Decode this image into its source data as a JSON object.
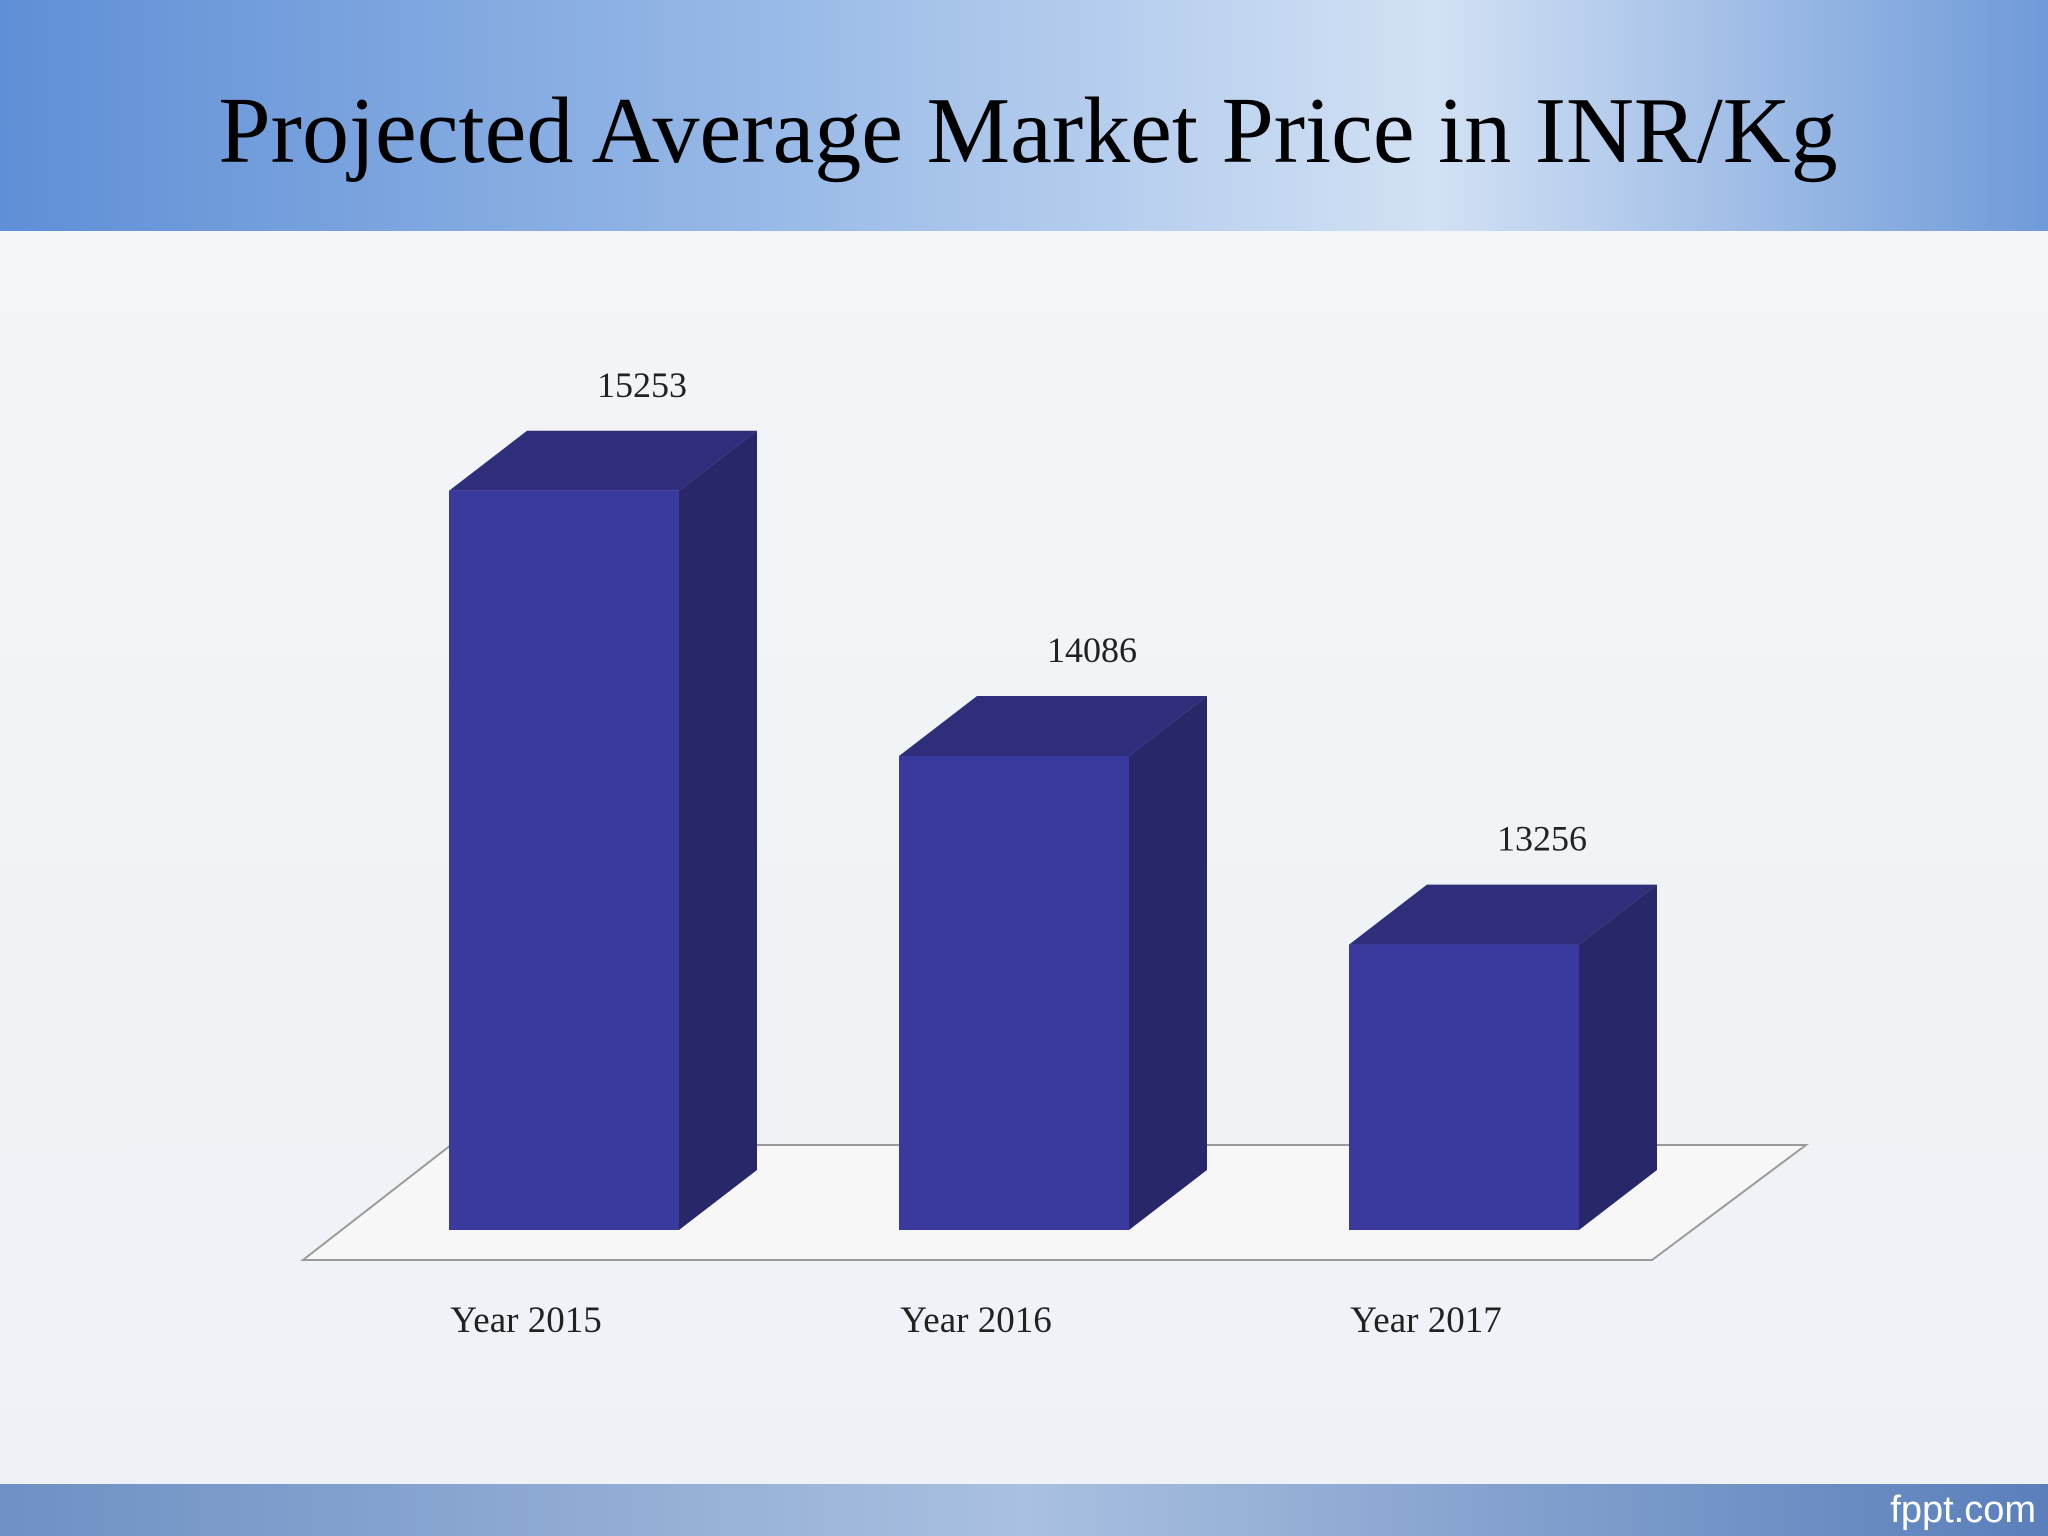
{
  "chart_data": {
    "type": "bar3d",
    "title": "Projected Average Market Price in INR/Kg",
    "categories": [
      "Year 2015",
      "Year 2016",
      "Year 2017"
    ],
    "values": [
      15253,
      14086,
      13256
    ],
    "color": "#3a3a9e",
    "ylim": [
      12000,
      16000
    ]
  },
  "footer": "fppt.com"
}
